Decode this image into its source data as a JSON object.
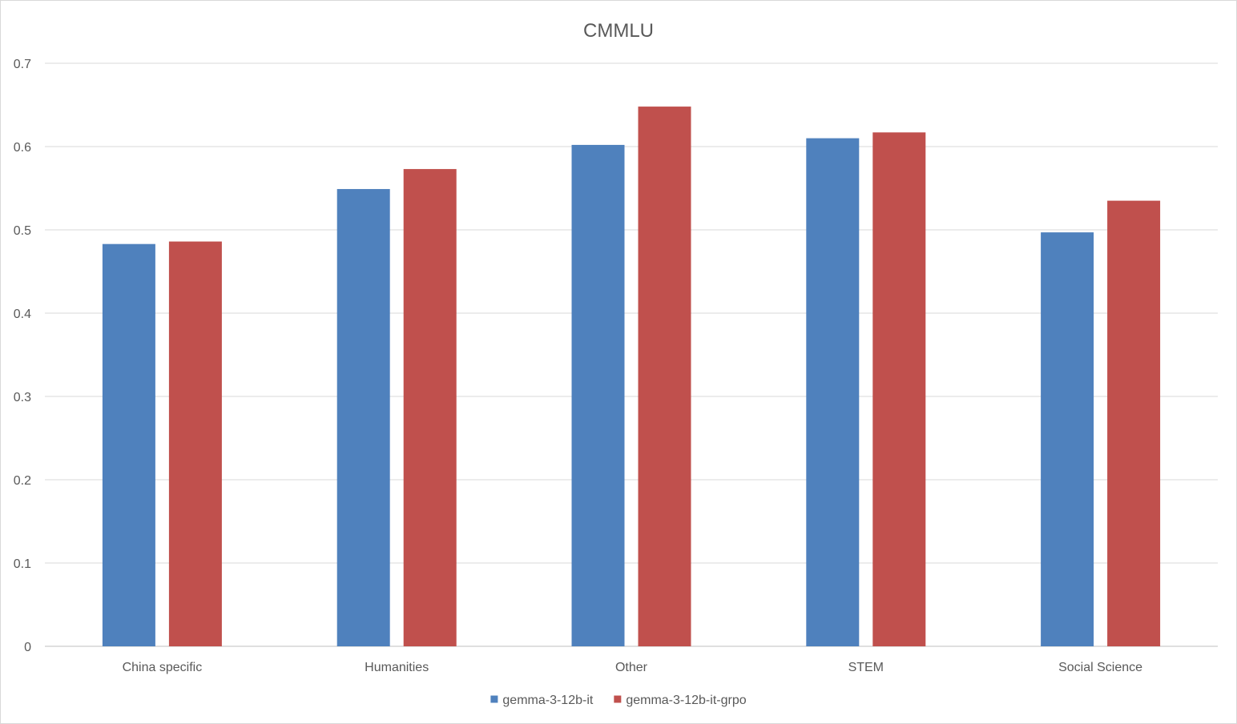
{
  "chart_data": {
    "type": "bar",
    "title": "CMMLU",
    "xlabel": "",
    "ylabel": "",
    "ylim": [
      0,
      0.7
    ],
    "yticks": [
      "0",
      "0.1",
      "0.2",
      "0.3",
      "0.4",
      "0.5",
      "0.6",
      "0.7"
    ],
    "grid": true,
    "legend_position": "bottom",
    "categories": [
      "China specific",
      "Humanities",
      "Other",
      "STEM",
      "Social Science"
    ],
    "series": [
      {
        "name": "gemma-3-12b-it",
        "color": "#4f81bd",
        "values": [
          0.483,
          0.549,
          0.602,
          0.61,
          0.497
        ]
      },
      {
        "name": "gemma-3-12b-it-grpo",
        "color": "#c0504d",
        "values": [
          0.486,
          0.573,
          0.648,
          0.617,
          0.535
        ]
      }
    ]
  }
}
